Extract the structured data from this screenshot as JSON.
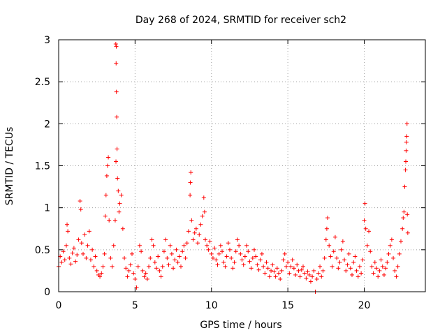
{
  "chart_data": {
    "type": "scatter",
    "title": "Day 268 of 2024, SRMTID for receiver sch2",
    "xlabel": "GPS time / hours",
    "ylabel": "SRMTID / TECUs",
    "xlim": [
      0,
      24
    ],
    "ylim": [
      0,
      3
    ],
    "xticks": [
      0,
      5,
      10,
      15,
      20
    ],
    "xtick_labels": [
      "0",
      "5",
      "10",
      "15",
      "20"
    ],
    "yticks": [
      0,
      0.5,
      1,
      1.5,
      2,
      2.5,
      3
    ],
    "ytick_labels": [
      "0",
      "0.5",
      "1",
      "1.5",
      "2",
      "2.5",
      "3"
    ],
    "grid": true,
    "marker": "+",
    "marker_color": "#ff0000",
    "series": [
      {
        "name": "SRMTID",
        "points": [
          [
            0.0,
            0.3
          ],
          [
            0.1,
            0.42
          ],
          [
            0.2,
            0.35
          ],
          [
            0.3,
            0.48
          ],
          [
            0.4,
            0.38
          ],
          [
            0.5,
            0.55
          ],
          [
            0.55,
            0.8
          ],
          [
            0.6,
            0.72
          ],
          [
            0.7,
            0.4
          ],
          [
            0.8,
            0.33
          ],
          [
            0.9,
            0.46
          ],
          [
            1.0,
            0.52
          ],
          [
            1.1,
            0.36
          ],
          [
            1.2,
            0.44
          ],
          [
            1.3,
            0.62
          ],
          [
            1.4,
            1.08
          ],
          [
            1.45,
            0.98
          ],
          [
            1.5,
            0.58
          ],
          [
            1.6,
            0.45
          ],
          [
            1.7,
            0.68
          ],
          [
            1.8,
            0.4
          ],
          [
            1.9,
            0.55
          ],
          [
            2.0,
            0.72
          ],
          [
            2.1,
            0.38
          ],
          [
            2.2,
            0.5
          ],
          [
            2.3,
            0.3
          ],
          [
            2.4,
            0.42
          ],
          [
            2.5,
            0.25
          ],
          [
            2.6,
            0.2
          ],
          [
            2.7,
            0.18
          ],
          [
            2.8,
            0.22
          ],
          [
            2.9,
            0.3
          ],
          [
            3.0,
            0.45
          ],
          [
            3.05,
            0.9
          ],
          [
            3.1,
            1.15
          ],
          [
            3.15,
            1.38
          ],
          [
            3.2,
            1.5
          ],
          [
            3.25,
            1.6
          ],
          [
            3.3,
            0.85
          ],
          [
            3.4,
            0.4
          ],
          [
            3.5,
            0.3
          ],
          [
            3.6,
            0.55
          ],
          [
            3.7,
            0.85
          ],
          [
            3.75,
            1.55
          ],
          [
            3.8,
            2.08
          ],
          [
            3.78,
            2.38
          ],
          [
            3.76,
            2.72
          ],
          [
            3.74,
            2.95
          ],
          [
            3.77,
            2.92
          ],
          [
            3.82,
            1.7
          ],
          [
            3.85,
            1.35
          ],
          [
            3.9,
            1.2
          ],
          [
            3.95,
            0.95
          ],
          [
            4.0,
            1.05
          ],
          [
            4.1,
            1.15
          ],
          [
            4.2,
            0.75
          ],
          [
            4.3,
            0.4
          ],
          [
            4.4,
            0.28
          ],
          [
            4.5,
            0.18
          ],
          [
            4.6,
            0.25
          ],
          [
            4.7,
            0.32
          ],
          [
            4.8,
            0.45
          ],
          [
            4.9,
            0.22
          ],
          [
            5.0,
            0.15
          ],
          [
            5.1,
            0.05
          ],
          [
            5.2,
            0.3
          ],
          [
            5.3,
            0.55
          ],
          [
            5.4,
            0.48
          ],
          [
            5.5,
            0.25
          ],
          [
            5.6,
            0.18
          ],
          [
            5.7,
            0.22
          ],
          [
            5.8,
            0.15
          ],
          [
            5.9,
            0.3
          ],
          [
            6.0,
            0.4
          ],
          [
            6.1,
            0.62
          ],
          [
            6.2,
            0.55
          ],
          [
            6.3,
            0.35
          ],
          [
            6.4,
            0.28
          ],
          [
            6.5,
            0.42
          ],
          [
            6.6,
            0.25
          ],
          [
            6.7,
            0.18
          ],
          [
            6.8,
            0.3
          ],
          [
            6.9,
            0.48
          ],
          [
            7.0,
            0.62
          ],
          [
            7.1,
            0.4
          ],
          [
            7.2,
            0.32
          ],
          [
            7.3,
            0.55
          ],
          [
            7.4,
            0.45
          ],
          [
            7.5,
            0.28
          ],
          [
            7.6,
            0.38
          ],
          [
            7.7,
            0.5
          ],
          [
            7.8,
            0.35
          ],
          [
            7.9,
            0.42
          ],
          [
            8.0,
            0.3
          ],
          [
            8.1,
            0.48
          ],
          [
            8.2,
            0.55
          ],
          [
            8.3,
            0.4
          ],
          [
            8.4,
            0.58
          ],
          [
            8.5,
            0.72
          ],
          [
            8.6,
            1.15
          ],
          [
            8.62,
            1.3
          ],
          [
            8.65,
            1.42
          ],
          [
            8.7,
            0.85
          ],
          [
            8.8,
            0.62
          ],
          [
            8.9,
            0.7
          ],
          [
            9.0,
            0.75
          ],
          [
            9.1,
            0.58
          ],
          [
            9.2,
            0.68
          ],
          [
            9.3,
            0.8
          ],
          [
            9.4,
            0.9
          ],
          [
            9.5,
            1.12
          ],
          [
            9.55,
            0.95
          ],
          [
            9.6,
            0.62
          ],
          [
            9.7,
            0.55
          ],
          [
            9.8,
            0.5
          ],
          [
            9.9,
            0.6
          ],
          [
            10.0,
            0.45
          ],
          [
            10.1,
            0.4
          ],
          [
            10.2,
            0.52
          ],
          [
            10.3,
            0.38
          ],
          [
            10.4,
            0.32
          ],
          [
            10.5,
            0.45
          ],
          [
            10.6,
            0.55
          ],
          [
            10.7,
            0.48
          ],
          [
            10.8,
            0.35
          ],
          [
            10.9,
            0.3
          ],
          [
            11.0,
            0.42
          ],
          [
            11.1,
            0.58
          ],
          [
            11.2,
            0.5
          ],
          [
            11.3,
            0.4
          ],
          [
            11.4,
            0.28
          ],
          [
            11.5,
            0.35
          ],
          [
            11.6,
            0.48
          ],
          [
            11.7,
            0.62
          ],
          [
            11.8,
            0.55
          ],
          [
            11.9,
            0.45
          ],
          [
            12.0,
            0.38
          ],
          [
            12.1,
            0.32
          ],
          [
            12.2,
            0.42
          ],
          [
            12.3,
            0.55
          ],
          [
            12.4,
            0.48
          ],
          [
            12.5,
            0.36
          ],
          [
            12.6,
            0.28
          ],
          [
            12.7,
            0.4
          ],
          [
            12.8,
            0.5
          ],
          [
            12.9,
            0.42
          ],
          [
            13.0,
            0.32
          ],
          [
            13.1,
            0.26
          ],
          [
            13.2,
            0.38
          ],
          [
            13.3,
            0.45
          ],
          [
            13.4,
            0.3
          ],
          [
            13.5,
            0.22
          ],
          [
            13.6,
            0.35
          ],
          [
            13.7,
            0.28
          ],
          [
            13.8,
            0.18
          ],
          [
            13.9,
            0.25
          ],
          [
            14.0,
            0.32
          ],
          [
            14.1,
            0.24
          ],
          [
            14.2,
            0.18
          ],
          [
            14.3,
            0.28
          ],
          [
            14.4,
            0.22
          ],
          [
            14.5,
            0.15
          ],
          [
            14.6,
            0.25
          ],
          [
            14.7,
            0.38
          ],
          [
            14.8,
            0.45
          ],
          [
            14.9,
            0.3
          ],
          [
            15.0,
            0.35
          ],
          [
            15.1,
            0.22
          ],
          [
            15.2,
            0.3
          ],
          [
            15.3,
            0.38
          ],
          [
            15.4,
            0.28
          ],
          [
            15.5,
            0.2
          ],
          [
            15.6,
            0.32
          ],
          [
            15.7,
            0.25
          ],
          [
            15.8,
            0.18
          ],
          [
            15.9,
            0.26
          ],
          [
            16.0,
            0.3
          ],
          [
            16.1,
            0.22
          ],
          [
            16.2,
            0.16
          ],
          [
            16.3,
            0.24
          ],
          [
            16.4,
            0.2
          ],
          [
            16.5,
            0.12
          ],
          [
            16.6,
            0.18
          ],
          [
            16.7,
            0.25
          ],
          [
            16.8,
            0.0
          ],
          [
            16.9,
            0.15
          ],
          [
            17.0,
            0.22
          ],
          [
            17.1,
            0.3
          ],
          [
            17.2,
            0.18
          ],
          [
            17.3,
            0.25
          ],
          [
            17.4,
            0.4
          ],
          [
            17.5,
            0.62
          ],
          [
            17.55,
            0.75
          ],
          [
            17.6,
            0.88
          ],
          [
            17.7,
            0.55
          ],
          [
            17.8,
            0.42
          ],
          [
            17.9,
            0.3
          ],
          [
            18.0,
            0.48
          ],
          [
            18.1,
            0.65
          ],
          [
            18.2,
            0.4
          ],
          [
            18.3,
            0.28
          ],
          [
            18.4,
            0.35
          ],
          [
            18.5,
            0.5
          ],
          [
            18.6,
            0.6
          ],
          [
            18.7,
            0.38
          ],
          [
            18.8,
            0.25
          ],
          [
            18.9,
            0.32
          ],
          [
            19.0,
            0.45
          ],
          [
            19.1,
            0.28
          ],
          [
            19.2,
            0.2
          ],
          [
            19.3,
            0.35
          ],
          [
            19.4,
            0.42
          ],
          [
            19.5,
            0.25
          ],
          [
            19.6,
            0.18
          ],
          [
            19.7,
            0.3
          ],
          [
            19.8,
            0.22
          ],
          [
            19.9,
            0.38
          ],
          [
            20.0,
            0.85
          ],
          [
            20.05,
            1.05
          ],
          [
            20.1,
            0.75
          ],
          [
            20.2,
            0.55
          ],
          [
            20.3,
            0.72
          ],
          [
            20.4,
            0.48
          ],
          [
            20.5,
            0.3
          ],
          [
            20.6,
            0.22
          ],
          [
            20.7,
            0.35
          ],
          [
            20.8,
            0.28
          ],
          [
            20.9,
            0.18
          ],
          [
            21.0,
            0.25
          ],
          [
            21.1,
            0.38
          ],
          [
            21.2,
            0.3
          ],
          [
            21.3,
            0.2
          ],
          [
            21.4,
            0.28
          ],
          [
            21.5,
            0.35
          ],
          [
            21.6,
            0.45
          ],
          [
            21.7,
            0.55
          ],
          [
            21.8,
            0.62
          ],
          [
            21.9,
            0.4
          ],
          [
            22.0,
            0.25
          ],
          [
            22.1,
            0.18
          ],
          [
            22.2,
            0.3
          ],
          [
            22.3,
            0.45
          ],
          [
            22.4,
            0.6
          ],
          [
            22.5,
            0.75
          ],
          [
            22.55,
            0.88
          ],
          [
            22.6,
            0.95
          ],
          [
            22.65,
            1.25
          ],
          [
            22.7,
            1.45
          ],
          [
            22.72,
            1.55
          ],
          [
            22.74,
            1.68
          ],
          [
            22.76,
            1.78
          ],
          [
            22.78,
            1.85
          ],
          [
            22.8,
            2.0
          ],
          [
            22.82,
            0.92
          ],
          [
            22.85,
            0.7
          ]
        ]
      }
    ]
  }
}
